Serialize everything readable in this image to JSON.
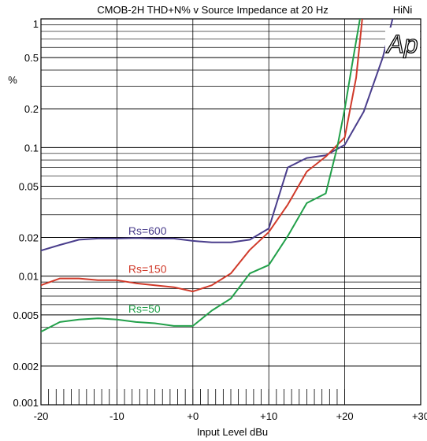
{
  "chart_data": {
    "type": "line",
    "title": "CMOB-2H THD+N% v Source Impedance at 20 Hz",
    "badge": "HiNi",
    "logo": "Ap",
    "xlabel": "Input Level  dBu",
    "ylabel": "%",
    "x_scale": "linear",
    "y_scale": "log",
    "xlim": [
      -20,
      30
    ],
    "ylim": [
      0.001,
      1
    ],
    "grid": true,
    "x_ticks": [
      {
        "value": -20,
        "label": "-20"
      },
      {
        "value": -10,
        "label": "-10"
      },
      {
        "value": 0,
        "label": "+0"
      },
      {
        "value": 10,
        "label": "+10"
      },
      {
        "value": 20,
        "label": "+20"
      },
      {
        "value": 30,
        "label": "+30"
      }
    ],
    "y_ticks": [
      {
        "value": 1,
        "label": "1"
      },
      {
        "value": 0.5,
        "label": "0.5"
      },
      {
        "value": 0.2,
        "label": "0.2"
      },
      {
        "value": 0.1,
        "label": "0.1"
      },
      {
        "value": 0.05,
        "label": "0.05"
      },
      {
        "value": 0.02,
        "label": "0.02"
      },
      {
        "value": 0.01,
        "label": "0.01"
      },
      {
        "value": 0.005,
        "label": "0.005"
      },
      {
        "value": 0.002,
        "label": "0.002"
      },
      {
        "value": 0.001,
        "label": "0.001"
      }
    ],
    "series": [
      {
        "name": "Rs=600",
        "color": "#4a3e8c",
        "label_at": [
          -8.5,
          0.021
        ],
        "points": [
          [
            -20,
            0.0158
          ],
          [
            -17.5,
            0.0175
          ],
          [
            -15,
            0.0192
          ],
          [
            -12.5,
            0.0196
          ],
          [
            -10,
            0.0196
          ],
          [
            -7.5,
            0.0198
          ],
          [
            -5,
            0.0196
          ],
          [
            -2.5,
            0.0196
          ],
          [
            0,
            0.0188
          ],
          [
            2.5,
            0.0183
          ],
          [
            5,
            0.0183
          ],
          [
            7.5,
            0.0192
          ],
          [
            10,
            0.0235
          ],
          [
            12.5,
            0.07
          ],
          [
            15,
            0.083
          ],
          [
            17.5,
            0.087
          ],
          [
            20,
            0.105
          ],
          [
            22.5,
            0.19
          ],
          [
            25,
            0.5
          ],
          [
            26.3,
            1.0
          ]
        ]
      },
      {
        "name": "Rs=150",
        "color": "#d03a2a",
        "label_at": [
          -8.5,
          0.0106
        ],
        "points": [
          [
            -20,
            0.0085
          ],
          [
            -17.5,
            0.0096
          ],
          [
            -15,
            0.0096
          ],
          [
            -12.5,
            0.0093
          ],
          [
            -10,
            0.0093
          ],
          [
            -7.5,
            0.0088
          ],
          [
            -5,
            0.0085
          ],
          [
            -2.5,
            0.0082
          ],
          [
            0,
            0.0076
          ],
          [
            2.5,
            0.0085
          ],
          [
            5,
            0.0105
          ],
          [
            7.5,
            0.016
          ],
          [
            10,
            0.022
          ],
          [
            12.5,
            0.036
          ],
          [
            15,
            0.065
          ],
          [
            17.5,
            0.085
          ],
          [
            20,
            0.12
          ],
          [
            21.5,
            0.35
          ],
          [
            22.3,
            1.0
          ]
        ]
      },
      {
        "name": "Rs=50",
        "color": "#22a04a",
        "label_at": [
          -8.5,
          0.0052
        ],
        "points": [
          [
            -20,
            0.0037
          ],
          [
            -17.5,
            0.0044
          ],
          [
            -15,
            0.0046
          ],
          [
            -12.5,
            0.0047
          ],
          [
            -10,
            0.0046
          ],
          [
            -7.5,
            0.0044
          ],
          [
            -5,
            0.0043
          ],
          [
            -2.5,
            0.0041
          ],
          [
            0,
            0.0041
          ],
          [
            2.5,
            0.0054
          ],
          [
            5,
            0.0067
          ],
          [
            7.5,
            0.0105
          ],
          [
            10,
            0.0122
          ],
          [
            12.5,
            0.0205
          ],
          [
            15,
            0.037
          ],
          [
            17.5,
            0.044
          ],
          [
            19,
            0.1
          ],
          [
            20,
            0.2
          ],
          [
            21,
            0.45
          ],
          [
            22,
            1.0
          ]
        ]
      }
    ]
  }
}
